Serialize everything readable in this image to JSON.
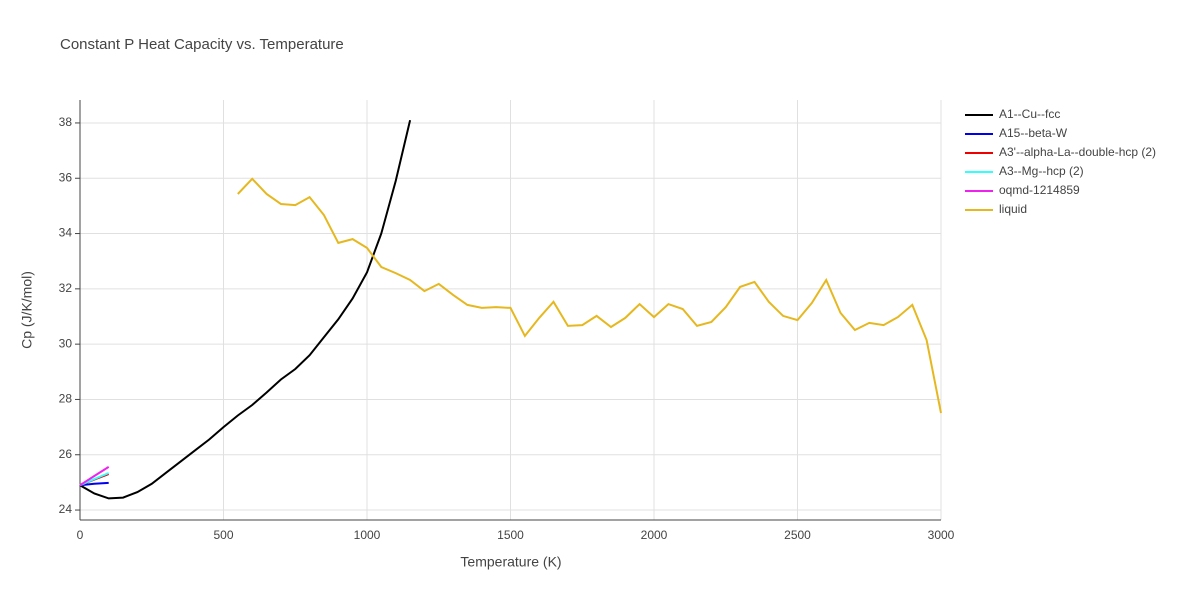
{
  "chart_data": {
    "type": "line",
    "title": "Constant P Heat Capacity vs. Temperature",
    "x_label": "Temperature (K)",
    "y_label": "Cp (J/K/mol)",
    "xlim": [
      0,
      3000
    ],
    "ylim": [
      23.64,
      38.83
    ],
    "xticks": [
      0,
      500,
      1000,
      1500,
      2000,
      2500,
      3000
    ],
    "yticks": [
      24,
      26,
      28,
      30,
      32,
      34,
      36,
      38
    ],
    "grid": true,
    "legend": "right",
    "series": [
      {
        "name": "A1--Cu--fcc",
        "color": "#000000",
        "x": [
          0,
          50,
          100,
          150,
          200,
          250,
          300,
          350,
          400,
          450,
          500,
          550,
          600,
          650,
          700,
          750,
          800,
          850,
          900,
          950,
          1000,
          1050,
          1100,
          1150
        ],
        "values": [
          24.9,
          24.6,
          24.42,
          24.45,
          24.65,
          24.95,
          25.35,
          25.75,
          26.15,
          26.55,
          27.0,
          27.42,
          27.8,
          28.25,
          28.72,
          29.1,
          29.6,
          30.25,
          30.9,
          31.65,
          32.6,
          34.0,
          35.9,
          38.1
        ]
      },
      {
        "name": "A15--beta-W",
        "color": "#0000ee",
        "x": [
          0,
          50,
          100
        ],
        "values": [
          24.9,
          24.95,
          24.98
        ]
      },
      {
        "name": "A3'--alpha-La--double-hcp (2)",
        "color": "#ee0000",
        "x": [
          0,
          50,
          100
        ],
        "values": [
          24.9,
          25.1,
          25.3
        ]
      },
      {
        "name": "A3--Mg--hcp (2)",
        "color": "#33ffff",
        "x": [
          0,
          50,
          100
        ],
        "values": [
          24.9,
          25.12,
          25.34
        ]
      },
      {
        "name": "oqmd-1214859",
        "color": "#ee22ee",
        "x": [
          0,
          50,
          100
        ],
        "values": [
          24.9,
          25.23,
          25.56
        ]
      },
      {
        "name": "liquid",
        "color": "#e6b820",
        "x": [
          550,
          600,
          650,
          700,
          750,
          800,
          850,
          900,
          950,
          1000,
          1050,
          1100,
          1150,
          1200,
          1250,
          1300,
          1350,
          1400,
          1450,
          1500,
          1550,
          1600,
          1650,
          1700,
          1750,
          1800,
          1850,
          1900,
          1950,
          2000,
          2050,
          2100,
          2150,
          2200,
          2250,
          2300,
          2350,
          2400,
          2450,
          2500,
          2550,
          2600,
          2650,
          2700,
          2750,
          2800,
          2850,
          2900,
          2950,
          3000
        ],
        "values": [
          35.43,
          35.98,
          35.43,
          35.07,
          35.03,
          35.32,
          34.67,
          33.66,
          33.8,
          33.48,
          32.79,
          32.57,
          32.32,
          31.92,
          32.18,
          31.78,
          31.42,
          31.31,
          31.34,
          31.31,
          30.3,
          30.95,
          31.53,
          30.66,
          30.69,
          31.02,
          30.62,
          30.95,
          31.45,
          30.98,
          31.45,
          31.27,
          30.66,
          30.8,
          31.34,
          32.07,
          32.25,
          31.53,
          31.02,
          30.87,
          31.49,
          32.32,
          31.13,
          30.51,
          30.77,
          30.69,
          30.98,
          31.42,
          30.15,
          27.51
        ]
      }
    ]
  }
}
